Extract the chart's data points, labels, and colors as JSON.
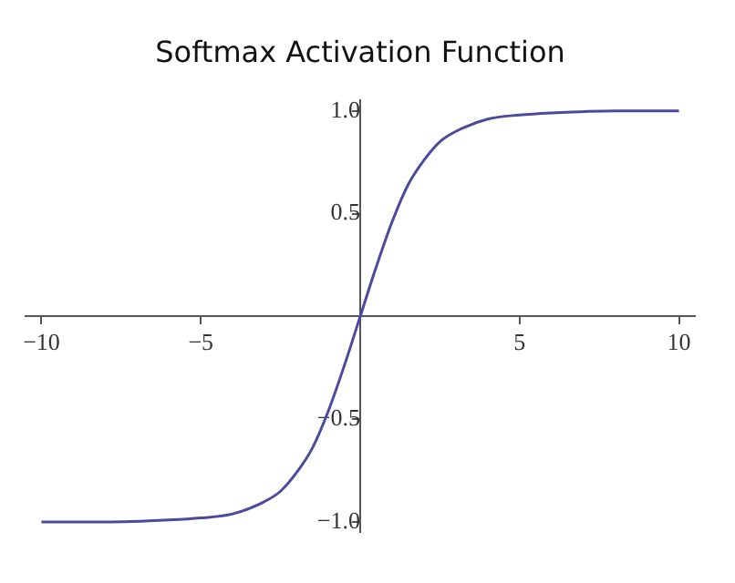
{
  "chart_data": {
    "type": "line",
    "title": "Softmax Activation Function",
    "x": [
      -10,
      -8,
      -6,
      -5,
      -4,
      -3,
      -2.5,
      -2,
      -1.5,
      -1,
      -0.5,
      0,
      0.5,
      1,
      1.5,
      2,
      2.5,
      3,
      4,
      5,
      6,
      8,
      10
    ],
    "series": [
      {
        "color": "#4b4a9c",
        "values": [
          -1,
          -1,
          -0.99,
          -0.98,
          -0.96,
          -0.9,
          -0.85,
          -0.76,
          -0.64,
          -0.46,
          -0.24,
          0,
          0.24,
          0.46,
          0.64,
          0.76,
          0.85,
          0.9,
          0.96,
          0.98,
          0.99,
          1,
          1
        ]
      }
    ],
    "xlim": [
      -10.5,
      10.5
    ],
    "ylim": [
      -1.05,
      1.05
    ],
    "xticks": [
      {
        "value": -10,
        "label": "−10"
      },
      {
        "value": -5,
        "label": "−5"
      },
      5,
      10
    ],
    "yticks": [
      {
        "value": -1,
        "label": "−1.0"
      },
      {
        "value": -0.5,
        "label": "−0.5"
      },
      0.5,
      {
        "value": 1,
        "label": "1.0"
      }
    ],
    "grid": false,
    "legend": false,
    "marker": "none",
    "line_style": "solid"
  }
}
